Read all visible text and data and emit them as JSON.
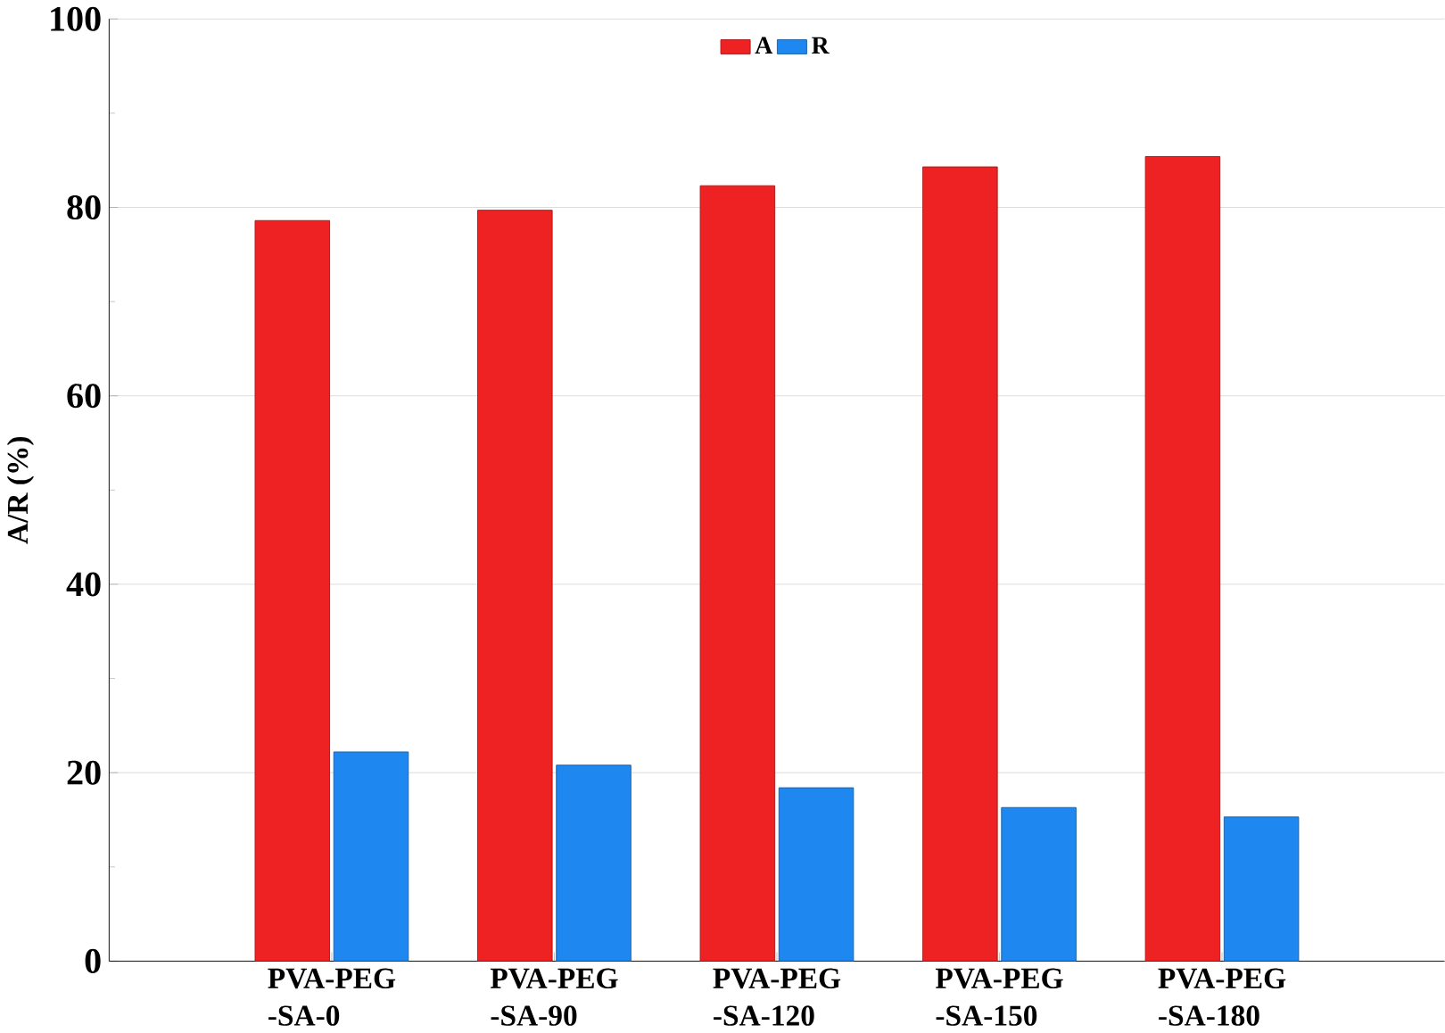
{
  "chart_data": {
    "type": "bar",
    "ylabel": "A/R (%)",
    "categories": [
      "PVA-PEG\n-SA-0",
      "PVA-PEG\n-SA-90",
      "PVA-PEG\n-SA-120",
      "PVA-PEG\n-SA-150",
      "PVA-PEG\n-SA-180"
    ],
    "series": [
      {
        "name": "A",
        "color": "#ee2222",
        "values": [
          78.6,
          79.7,
          82.3,
          84.3,
          85.4
        ]
      },
      {
        "name": "R",
        "color": "#1e88f0",
        "values": [
          22.2,
          20.8,
          18.4,
          16.3,
          15.3
        ]
      }
    ],
    "ylim": [
      0,
      100
    ],
    "yticks": [
      0,
      20,
      40,
      60,
      80,
      100
    ],
    "grid": "y",
    "legend": "top"
  }
}
